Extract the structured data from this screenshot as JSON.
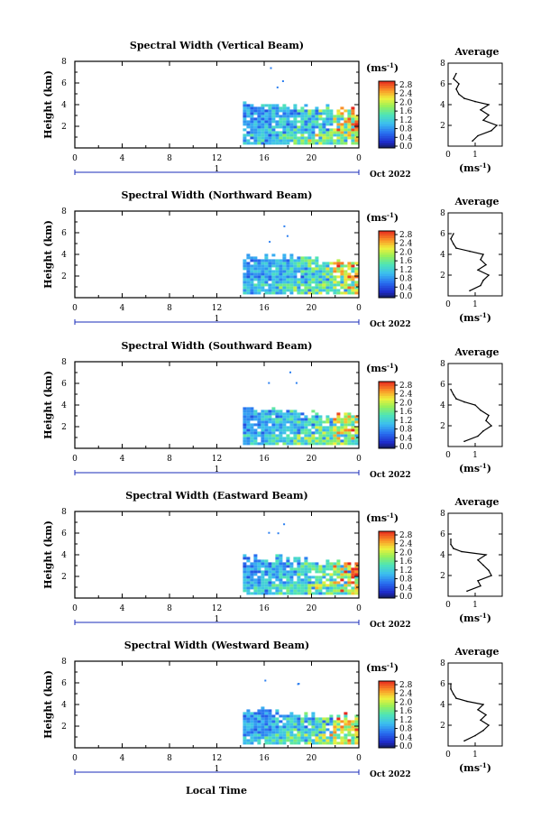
{
  "figure": {
    "x_axis_label": "Local Time",
    "month_label": "Oct 2022",
    "day_label": "1",
    "colorbar_unit": "(ms",
    "colorbar_unit_sup": "-1",
    "colorbar_unit_close": ")",
    "avg_title": "Average",
    "avg_xlabel": "(ms",
    "avg_xlabel_sup": "-1",
    "avg_xlabel_close": ")",
    "y_axis_label": "Height (km)"
  },
  "chart_data": [
    {
      "type": "heatmap",
      "title": "Spectral Width (Vertical Beam)",
      "xlabel": "Local Time",
      "ylabel": "Height (km)",
      "xlim": [
        0,
        24
      ],
      "ylim": [
        0,
        8
      ],
      "x_ticks": [
        "0",
        "4",
        "8",
        "12",
        "16",
        "20",
        "0"
      ],
      "y_ticks": [
        "2",
        "4",
        "6",
        "8"
      ],
      "colorbar": {
        "label": "(ms-1)",
        "range": [
          0.0,
          2.8
        ],
        "ticks": [
          "2.8",
          "2.4",
          "2.0",
          "1.6",
          "1.2",
          "0.8",
          "0.4",
          "0.0"
        ]
      },
      "data_coverage": {
        "x_range": [
          14.2,
          24
        ],
        "height_top_km": 4.0
      },
      "average_profile": {
        "title": "Average",
        "xlabel": "(ms-1)",
        "xlim": [
          0,
          2
        ],
        "x_ticks": [
          "0",
          "1"
        ],
        "ylim": [
          0,
          8
        ],
        "y_ticks": [
          "2",
          "4",
          "6",
          "8"
        ],
        "height_km": [
          0.5,
          1.0,
          1.5,
          2.0,
          2.5,
          3.0,
          3.5,
          4.0,
          4.3,
          4.6,
          5.0,
          5.5,
          6.0,
          6.5,
          7.0
        ],
        "values": [
          0.9,
          1.1,
          1.6,
          1.8,
          1.3,
          1.5,
          1.2,
          1.5,
          1.0,
          0.6,
          0.4,
          0.3,
          0.4,
          0.2,
          0.3
        ]
      }
    },
    {
      "type": "heatmap",
      "title": "Spectral Width (Northward Beam)",
      "xlabel": "Local Time",
      "ylabel": "Height (km)",
      "xlim": [
        0,
        24
      ],
      "ylim": [
        0,
        8
      ],
      "x_ticks": [
        "0",
        "4",
        "8",
        "12",
        "16",
        "20",
        "0"
      ],
      "y_ticks": [
        "2",
        "4",
        "6",
        "8"
      ],
      "colorbar": {
        "label": "(ms-1)",
        "range": [
          0.0,
          2.8
        ],
        "ticks": [
          "2.8",
          "2.4",
          "2.0",
          "1.6",
          "1.2",
          "0.8",
          "0.4",
          "0.0"
        ]
      },
      "data_coverage": {
        "x_range": [
          14.2,
          24
        ],
        "height_top_km": 3.8
      },
      "average_profile": {
        "title": "Average",
        "xlabel": "(ms-1)",
        "xlim": [
          0,
          2
        ],
        "x_ticks": [
          "0",
          "1"
        ],
        "ylim": [
          0,
          8
        ],
        "y_ticks": [
          "2",
          "4",
          "6",
          "8"
        ],
        "height_km": [
          0.5,
          1.0,
          1.5,
          2.0,
          2.5,
          3.0,
          3.5,
          4.0,
          4.3,
          4.6,
          5.0,
          5.5,
          6.0
        ],
        "values": [
          0.8,
          1.2,
          1.3,
          1.5,
          1.1,
          1.4,
          1.2,
          1.3,
          0.8,
          0.3,
          0.2,
          0.1,
          0.2
        ]
      }
    },
    {
      "type": "heatmap",
      "title": "Spectral Width (Southward Beam)",
      "xlabel": "Local Time",
      "ylabel": "Height (km)",
      "xlim": [
        0,
        24
      ],
      "ylim": [
        0,
        8
      ],
      "x_ticks": [
        "0",
        "4",
        "8",
        "12",
        "16",
        "20",
        "0"
      ],
      "y_ticks": [
        "2",
        "4",
        "6",
        "8"
      ],
      "colorbar": {
        "label": "(ms-1)",
        "range": [
          0.0,
          2.8
        ],
        "ticks": [
          "2.8",
          "2.4",
          "2.0",
          "1.6",
          "1.2",
          "0.8",
          "0.4",
          "0.0"
        ]
      },
      "data_coverage": {
        "x_range": [
          14.2,
          24
        ],
        "height_top_km": 3.6
      },
      "average_profile": {
        "title": "Average",
        "xlabel": "(ms-1)",
        "xlim": [
          0,
          2
        ],
        "x_ticks": [
          "0",
          "1"
        ],
        "ylim": [
          0,
          8
        ],
        "y_ticks": [
          "2",
          "4",
          "6",
          "8"
        ],
        "height_km": [
          0.5,
          1.0,
          1.5,
          2.0,
          2.5,
          3.0,
          3.5,
          4.0,
          4.3,
          4.6,
          5.0,
          5.5
        ],
        "values": [
          0.6,
          1.1,
          1.3,
          1.6,
          1.4,
          1.5,
          1.2,
          1.0,
          0.6,
          0.3,
          0.2,
          0.1
        ]
      }
    },
    {
      "type": "heatmap",
      "title": "Spectral Width (Eastward Beam)",
      "xlabel": "Local Time",
      "ylabel": "Height (km)",
      "xlim": [
        0,
        24
      ],
      "ylim": [
        0,
        8
      ],
      "x_ticks": [
        "0",
        "4",
        "8",
        "12",
        "16",
        "20",
        "0"
      ],
      "y_ticks": [
        "2",
        "4",
        "6",
        "8"
      ],
      "colorbar": {
        "label": "(ms-1)",
        "range": [
          0.0,
          2.8
        ],
        "ticks": [
          "2.8",
          "2.4",
          "2.0",
          "1.6",
          "1.2",
          "0.8",
          "0.4",
          "0.0"
        ]
      },
      "data_coverage": {
        "x_range": [
          14.2,
          24
        ],
        "height_top_km": 3.7
      },
      "average_profile": {
        "title": "Average",
        "xlabel": "(ms-1)",
        "xlim": [
          0,
          2
        ],
        "x_ticks": [
          "0",
          "1"
        ],
        "ylim": [
          0,
          8
        ],
        "y_ticks": [
          "2",
          "4",
          "6",
          "8"
        ],
        "height_km": [
          0.5,
          1.0,
          1.5,
          2.0,
          2.5,
          3.0,
          3.5,
          4.0,
          4.3,
          4.6,
          5.0,
          5.5
        ],
        "values": [
          0.7,
          1.2,
          1.1,
          1.6,
          1.5,
          1.3,
          1.1,
          1.4,
          0.5,
          0.2,
          0.1,
          0.1
        ]
      }
    },
    {
      "type": "heatmap",
      "title": "Spectral Width (Westward Beam)",
      "xlabel": "Local Time",
      "ylabel": "Height (km)",
      "xlim": [
        0,
        24
      ],
      "ylim": [
        0,
        8
      ],
      "x_ticks": [
        "0",
        "4",
        "8",
        "12",
        "16",
        "20",
        "0"
      ],
      "y_ticks": [
        "2",
        "4",
        "6",
        "8"
      ],
      "colorbar": {
        "label": "(ms-1)",
        "range": [
          0.0,
          2.8
        ],
        "ticks": [
          "2.8",
          "2.4",
          "2.0",
          "1.6",
          "1.2",
          "0.8",
          "0.4",
          "0.0"
        ]
      },
      "data_coverage": {
        "x_range": [
          14.2,
          24
        ],
        "height_top_km": 3.4
      },
      "average_profile": {
        "title": "Average",
        "xlabel": "(ms-1)",
        "xlim": [
          0,
          2
        ],
        "x_ticks": [
          "0",
          "1"
        ],
        "ylim": [
          0,
          8
        ],
        "y_ticks": [
          "2",
          "4",
          "6",
          "8"
        ],
        "height_km": [
          0.5,
          1.0,
          1.5,
          2.0,
          2.5,
          3.0,
          3.5,
          4.0,
          4.3,
          4.6,
          5.0,
          5.5,
          6.0
        ],
        "values": [
          0.6,
          1.0,
          1.3,
          1.5,
          1.2,
          1.4,
          1.1,
          1.3,
          0.7,
          0.3,
          0.2,
          0.1,
          0.1
        ]
      }
    }
  ]
}
